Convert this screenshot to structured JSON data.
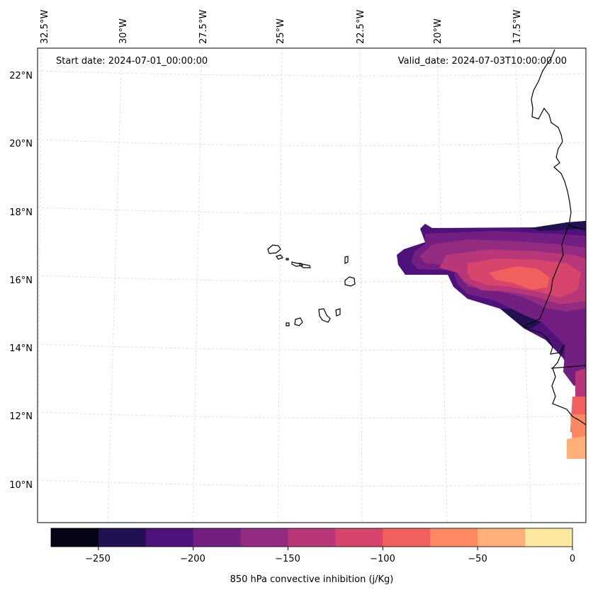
{
  "map": {
    "start_date": "Start date: 2024-07-01_00:00:00",
    "valid_date": "Valid_date: 2024-07-03T10:00:00.00",
    "lon_labels": [
      "32.5°W",
      "30°W",
      "27.5°W",
      "25°W",
      "22.5°W",
      "20°W",
      "17.5°W"
    ],
    "lat_labels": [
      "22°N",
      "20°N",
      "18°N",
      "16°N",
      "14°N",
      "12°N",
      "10°N"
    ]
  },
  "colorbar": {
    "label": "850 hPa convective inhibition (j/Kg)",
    "ticks": [
      "−250",
      "−200",
      "−150",
      "−100",
      "−50",
      "0"
    ],
    "range": [
      -275,
      0
    ],
    "levels": [
      -275,
      -250,
      -225,
      -200,
      -175,
      -150,
      -125,
      -100,
      -75,
      -50,
      -25,
      0
    ],
    "colors": [
      "#050416",
      "#221150",
      "#4f127b",
      "#721f81",
      "#932b80",
      "#b73779",
      "#d8456c",
      "#f1605d",
      "#fc8961",
      "#feb078",
      "#fde8a0"
    ]
  }
}
